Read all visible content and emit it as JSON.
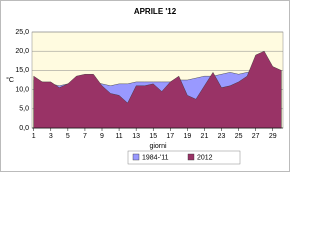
{
  "chart_data": {
    "type": "area",
    "title": "APRILE '12",
    "y_label": "°C",
    "x_label": "giorni",
    "x": [
      1,
      2,
      3,
      4,
      5,
      6,
      7,
      8,
      9,
      10,
      11,
      12,
      13,
      14,
      15,
      16,
      17,
      18,
      19,
      20,
      21,
      22,
      23,
      24,
      25,
      26,
      27,
      28,
      29,
      30
    ],
    "series": [
      {
        "name": "1984-'11",
        "color": "#9999ff",
        "values": [
          12.5,
          12,
          11.5,
          11,
          11.5,
          12,
          12,
          12,
          11.5,
          11,
          11.5,
          11.5,
          12,
          12,
          12,
          12,
          12,
          12.5,
          12.5,
          13,
          13.5,
          13.5,
          14,
          14.5,
          14,
          14.5,
          15,
          15,
          15,
          15
        ]
      },
      {
        "name": "2012",
        "color": "#993366",
        "values": [
          13.5,
          12,
          12,
          10.5,
          11.5,
          13.5,
          14,
          14,
          11,
          9,
          8.5,
          6.5,
          11,
          11,
          11.5,
          9.5,
          12,
          13.5,
          8.5,
          7.5,
          11,
          14.5,
          10.5,
          11,
          12,
          13.5,
          19,
          20,
          16,
          15
        ]
      }
    ],
    "xlim": [
      0.8,
      30.2
    ],
    "xticks": [
      1,
      3,
      5,
      7,
      9,
      11,
      13,
      15,
      17,
      19,
      21,
      23,
      25,
      27,
      29
    ],
    "ylim": [
      0,
      25
    ],
    "yticks": [
      {
        "value": 0,
        "label": "0,0"
      },
      {
        "value": 5,
        "label": "5,0"
      },
      {
        "value": 10,
        "label": "10,0"
      },
      {
        "value": 15,
        "label": "15,0"
      },
      {
        "value": 20,
        "label": "20,0"
      },
      {
        "value": 25,
        "label": "25,0"
      }
    ],
    "grid": true,
    "legend": "bottom"
  }
}
